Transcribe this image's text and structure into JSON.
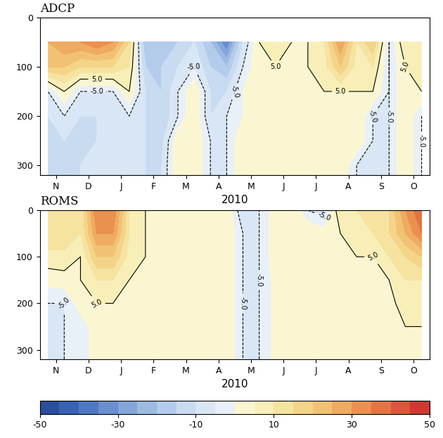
{
  "chart_data": [
    {
      "type": "contour",
      "title": "ADCP",
      "xlabel": "2010",
      "x": [
        0.25,
        0.75,
        1.25,
        1.75,
        2.25,
        2.75,
        3.25,
        3.75,
        4.25,
        4.75,
        5.25,
        5.75,
        6.25,
        6.75,
        7.25,
        7.75,
        8.25,
        8.75,
        9.25,
        9.75,
        10.25,
        10.75,
        11.25,
        11.75
      ],
      "y": [
        50,
        100,
        150,
        200,
        250,
        300,
        320
      ],
      "cells": [
        [
          25,
          30,
          30,
          35,
          30,
          15,
          -20,
          -15,
          -15,
          -10,
          -20,
          -35,
          -10,
          5,
          8,
          5,
          5,
          10,
          30,
          10,
          20,
          -5,
          10,
          10
        ],
        [
          20,
          20,
          15,
          15,
          15,
          10,
          -15,
          -15,
          -10,
          -5,
          -15,
          -20,
          -5,
          5,
          5,
          5,
          5,
          8,
          20,
          8,
          10,
          -5,
          5,
          8
        ],
        [
          -5,
          5,
          -5,
          -5,
          -5,
          5,
          -10,
          -15,
          -5,
          5,
          -10,
          -10,
          0,
          5,
          5,
          3,
          5,
          5,
          5,
          5,
          5,
          -5,
          5,
          5
        ],
        [
          -10,
          -5,
          -10,
          -10,
          -8,
          -5,
          -10,
          -15,
          -5,
          5,
          -10,
          -5,
          0,
          5,
          5,
          3,
          5,
          5,
          5,
          5,
          -5,
          -5,
          5,
          -5
        ],
        [
          -10,
          -10,
          -10,
          -10,
          -8,
          -5,
          -10,
          -12,
          5,
          5,
          -5,
          -5,
          5,
          5,
          5,
          3,
          5,
          5,
          5,
          5,
          -5,
          -5,
          5,
          -5
        ],
        [
          -10,
          -10,
          -10,
          -8,
          -8,
          -5,
          -10,
          -10,
          5,
          5,
          -5,
          -5,
          5,
          5,
          5,
          3,
          5,
          5,
          5,
          -5,
          -5,
          -5,
          5,
          -5
        ],
        [
          -10,
          -10,
          -10,
          -8,
          -8,
          -5,
          -10,
          -10,
          5,
          5,
          -5,
          -5,
          5,
          5,
          5,
          3,
          5,
          5,
          5,
          -5,
          -5,
          -5,
          5,
          -5
        ]
      ],
      "xlim": [
        0,
        12
      ],
      "xticks": [
        {
          "value": 0.5,
          "label": "N"
        },
        {
          "value": 1.5,
          "label": "D"
        },
        {
          "value": 2.5,
          "label": "J"
        },
        {
          "value": 3.5,
          "label": "F"
        },
        {
          "value": 4.5,
          "label": "M"
        },
        {
          "value": 5.5,
          "label": "A"
        },
        {
          "value": 6.5,
          "label": "M"
        },
        {
          "value": 7.5,
          "label": "J"
        },
        {
          "value": 8.5,
          "label": "J"
        },
        {
          "value": 9.5,
          "label": "A"
        },
        {
          "value": 10.5,
          "label": "S"
        },
        {
          "value": 11.5,
          "label": "O"
        }
      ],
      "ylim": [
        320,
        0
      ],
      "yticks": [
        0,
        100,
        200,
        300
      ],
      "contour_levels": [
        -5,
        5
      ],
      "contour_labels": [
        "-5.0",
        "5.0"
      ]
    },
    {
      "type": "contour",
      "title": "ROMS",
      "xlabel": "2010",
      "x": [
        0.25,
        0.75,
        1.25,
        1.75,
        2.25,
        2.75,
        3.25,
        3.75,
        4.25,
        4.75,
        5.25,
        5.75,
        6.25,
        6.75,
        7.25,
        7.75,
        8.25,
        8.75,
        9.25,
        9.75,
        10.25,
        10.75,
        11.25,
        11.75
      ],
      "y": [
        0,
        50,
        100,
        150,
        200,
        250,
        300,
        320
      ],
      "cells": [
        [
          10,
          15,
          10,
          35,
          35,
          10,
          5,
          5,
          3,
          5,
          5,
          5,
          -10,
          -5,
          3,
          5,
          -5,
          -8,
          10,
          10,
          15,
          15,
          30,
          40
        ],
        [
          15,
          15,
          10,
          30,
          30,
          10,
          5,
          5,
          3,
          5,
          5,
          5,
          -5,
          -5,
          3,
          5,
          5,
          3,
          5,
          10,
          10,
          15,
          25,
          35
        ],
        [
          8,
          8,
          5,
          20,
          20,
          8,
          5,
          3,
          3,
          5,
          5,
          5,
          -5,
          -5,
          3,
          5,
          5,
          3,
          5,
          5,
          5,
          10,
          15,
          20
        ],
        [
          2,
          3,
          5,
          10,
          10,
          5,
          3,
          2,
          3,
          5,
          5,
          5,
          -5,
          -5,
          2,
          5,
          5,
          3,
          5,
          5,
          5,
          5,
          10,
          10
        ],
        [
          -5,
          -5,
          3,
          5,
          5,
          3,
          2,
          2,
          3,
          5,
          5,
          5,
          -5,
          -5,
          2,
          5,
          3,
          3,
          5,
          5,
          3,
          3,
          8,
          8
        ],
        [
          -5,
          -5,
          -3,
          3,
          3,
          3,
          2,
          2,
          3,
          5,
          5,
          5,
          -5,
          -5,
          2,
          5,
          3,
          3,
          5,
          5,
          3,
          3,
          5,
          5
        ],
        [
          -5,
          -5,
          -3,
          3,
          3,
          3,
          2,
          2,
          3,
          5,
          5,
          5,
          -5,
          -5,
          2,
          5,
          3,
          3,
          5,
          5,
          3,
          3,
          5,
          5
        ],
        [
          -5,
          -5,
          -3,
          3,
          3,
          3,
          2,
          2,
          3,
          5,
          5,
          5,
          -5,
          -5,
          2,
          5,
          3,
          3,
          5,
          5,
          3,
          3,
          5,
          5
        ]
      ],
      "xlim": [
        0,
        12
      ],
      "xticks": [
        {
          "value": 0.5,
          "label": "N"
        },
        {
          "value": 1.5,
          "label": "D"
        },
        {
          "value": 2.5,
          "label": "J"
        },
        {
          "value": 3.5,
          "label": "F"
        },
        {
          "value": 4.5,
          "label": "M"
        },
        {
          "value": 5.5,
          "label": "A"
        },
        {
          "value": 6.5,
          "label": "M"
        },
        {
          "value": 7.5,
          "label": "J"
        },
        {
          "value": 8.5,
          "label": "J"
        },
        {
          "value": 9.5,
          "label": "A"
        },
        {
          "value": 10.5,
          "label": "S"
        },
        {
          "value": 11.5,
          "label": "O"
        }
      ],
      "ylim": [
        320,
        0
      ],
      "yticks": [
        0,
        100,
        200,
        300
      ],
      "contour_levels": [
        -5,
        5
      ],
      "contour_labels": [
        "-5.0",
        "5.0"
      ]
    }
  ],
  "colorbar": {
    "levels": [
      -50,
      -45,
      -40,
      -35,
      -30,
      -25,
      -20,
      -15,
      -10,
      -5,
      0,
      5,
      10,
      15,
      20,
      25,
      30,
      35,
      40,
      45,
      50
    ],
    "range": [
      -50,
      50
    ],
    "ticks": [
      -50,
      -30,
      -10,
      10,
      30,
      50
    ]
  }
}
